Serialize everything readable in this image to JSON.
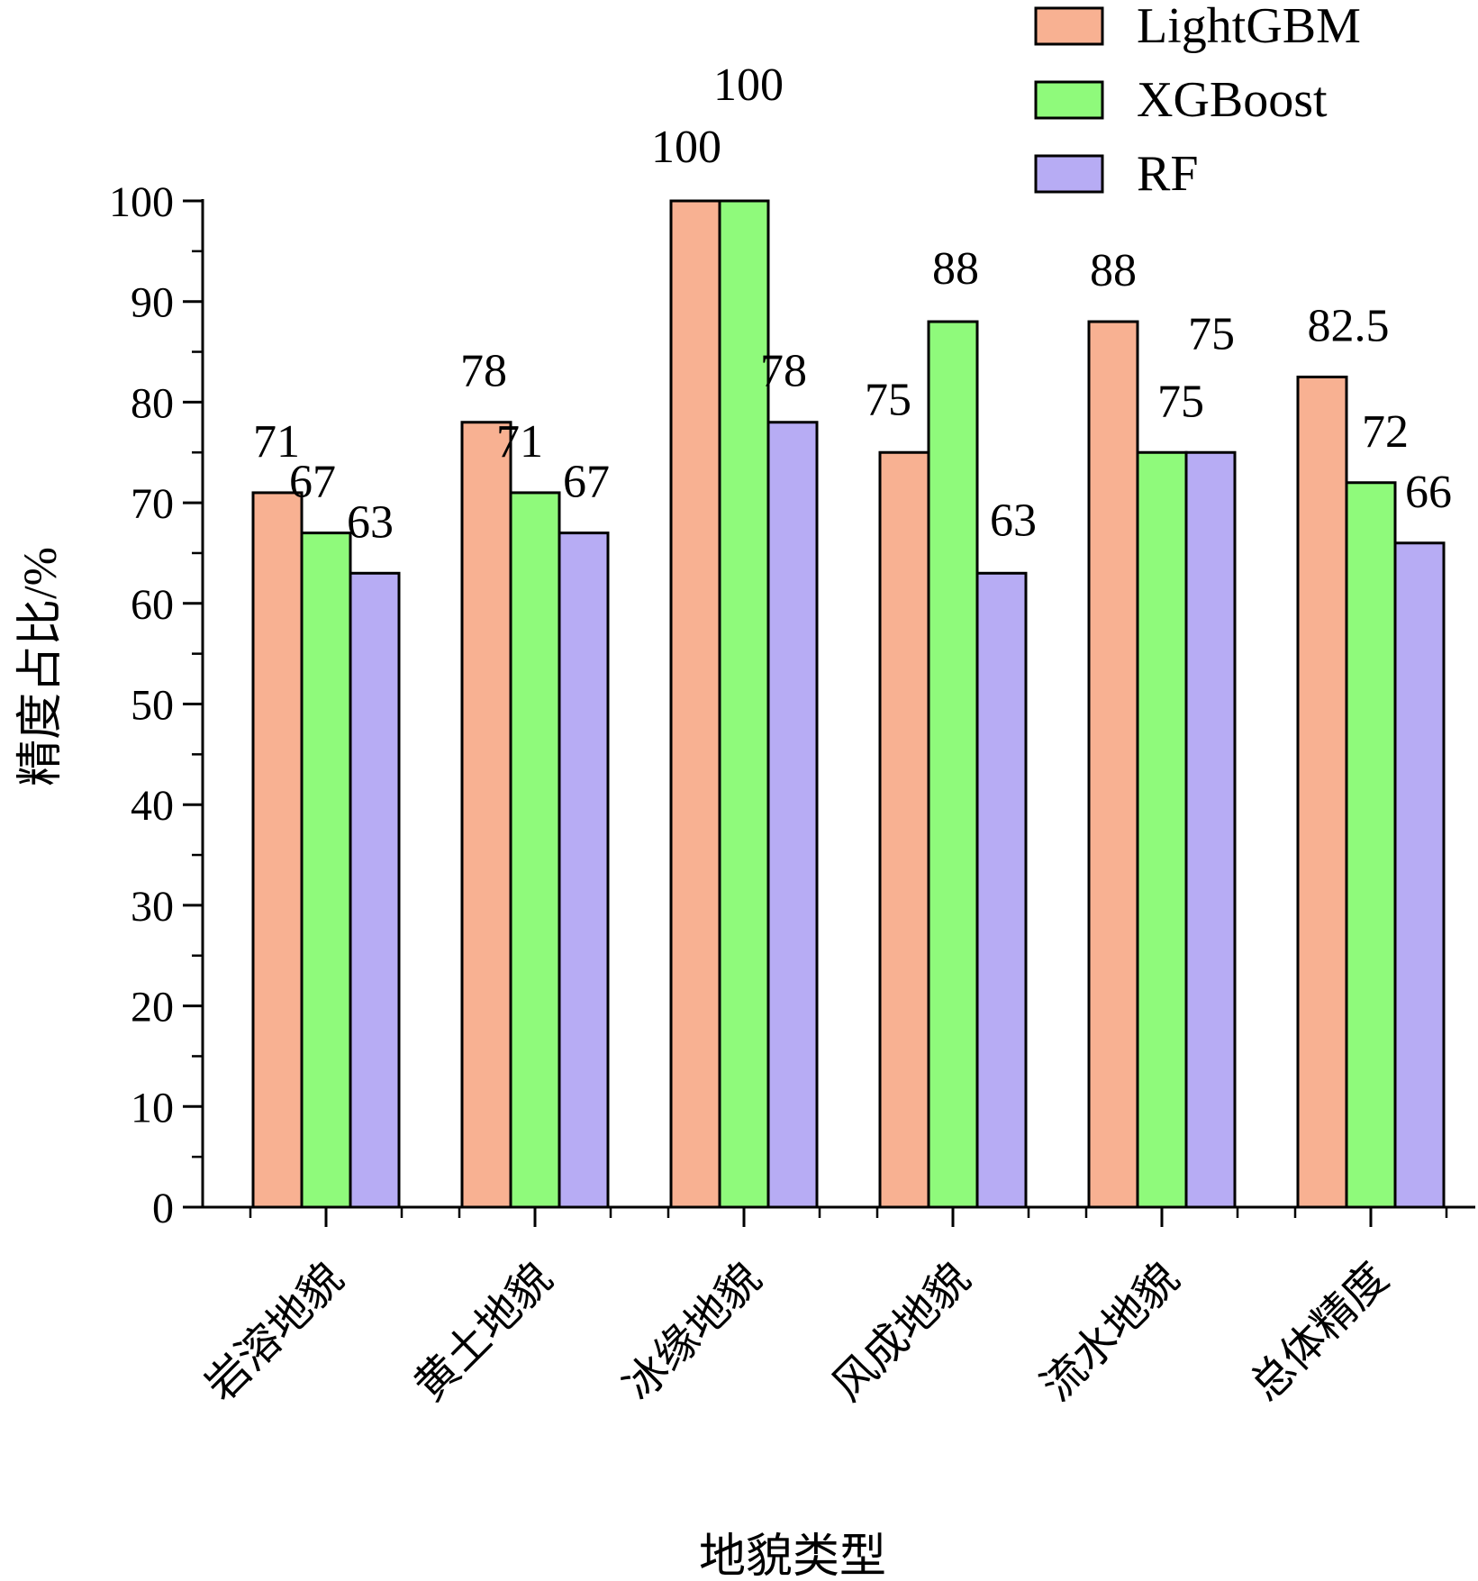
{
  "chart_data": {
    "type": "bar",
    "categories": [
      "岩溶地貌",
      "黄土地貌",
      "冰缘地貌",
      "风成地貌",
      "流水地貌",
      "总体精度"
    ],
    "series": [
      {
        "name": "LightGBM",
        "color": "#F8B192",
        "values": [
          71,
          78,
          100,
          75,
          88,
          82.5
        ]
      },
      {
        "name": "XGBoost",
        "color": "#8FFA7B",
        "values": [
          67,
          71,
          100,
          88,
          75,
          72
        ]
      },
      {
        "name": "RF",
        "color": "#B7ACF4",
        "values": [
          63,
          67,
          78,
          63,
          75,
          66
        ]
      }
    ],
    "xlabel": "地貌类型",
    "ylabel": "精度占比/%",
    "ylim": [
      0,
      100
    ],
    "yticks": [
      "0",
      "10",
      "20",
      "30",
      "40",
      "50",
      "60",
      "70",
      "80",
      "90",
      "100"
    ],
    "data_labels": [
      [
        "71",
        "78",
        "100",
        "75",
        "88",
        "82.5"
      ],
      [
        "67",
        "71",
        "100",
        "88",
        "75",
        "72"
      ],
      [
        "63",
        "67",
        "78",
        "63",
        "75",
        "66"
      ]
    ],
    "legend_position": "top-right",
    "grid": false
  }
}
